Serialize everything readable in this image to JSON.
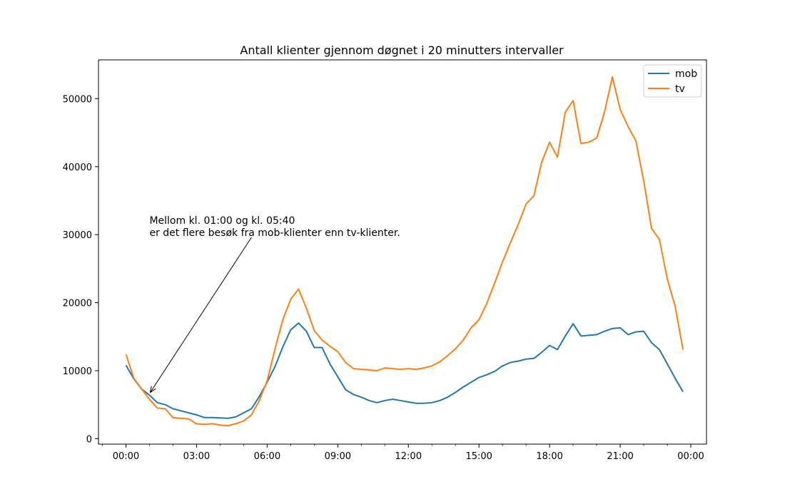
{
  "chart_data": {
    "type": "line",
    "title": "Antall klienter gjennom døgnet i 20 minutters intervaller",
    "xlabel": "",
    "ylabel": "",
    "x_unit": "minutes since midnight, 20-minute intervals",
    "x": [
      0,
      20,
      40,
      60,
      80,
      100,
      120,
      140,
      160,
      180,
      200,
      220,
      240,
      260,
      280,
      300,
      320,
      340,
      360,
      380,
      400,
      420,
      440,
      460,
      480,
      500,
      520,
      540,
      560,
      580,
      600,
      620,
      640,
      660,
      680,
      700,
      720,
      740,
      760,
      780,
      800,
      820,
      840,
      860,
      880,
      900,
      920,
      940,
      960,
      980,
      1000,
      1020,
      1040,
      1060,
      1080,
      1100,
      1120,
      1140,
      1160,
      1180,
      1200,
      1220,
      1240,
      1260,
      1280,
      1300,
      1320,
      1340,
      1360,
      1380,
      1400,
      1420
    ],
    "xlim": [
      -70,
      1480
    ],
    "ylim": [
      -800,
      55700
    ],
    "x_ticks": [
      {
        "value": 0,
        "label": "00:00"
      },
      {
        "value": 180,
        "label": "03:00"
      },
      {
        "value": 360,
        "label": "06:00"
      },
      {
        "value": 540,
        "label": "09:00"
      },
      {
        "value": 720,
        "label": "12:00"
      },
      {
        "value": 900,
        "label": "15:00"
      },
      {
        "value": 1080,
        "label": "18:00"
      },
      {
        "value": 1260,
        "label": "21:00"
      },
      {
        "value": 1440,
        "label": "00:00"
      }
    ],
    "x_minor_step": 60,
    "y_ticks": [
      {
        "value": 0,
        "label": "0"
      },
      {
        "value": 10000,
        "label": "10000"
      },
      {
        "value": 20000,
        "label": "20000"
      },
      {
        "value": 30000,
        "label": "30000"
      },
      {
        "value": 40000,
        "label": "40000"
      },
      {
        "value": 50000,
        "label": "50000"
      }
    ],
    "grid": false,
    "legend_position": "top-right",
    "series": [
      {
        "name": "mob",
        "color": "#1f77b4",
        "values": [
          10800,
          8800,
          7300,
          6400,
          5300,
          5000,
          4400,
          4100,
          3800,
          3500,
          3100,
          3100,
          3050,
          3000,
          3200,
          3800,
          4400,
          6200,
          8300,
          10600,
          13500,
          16000,
          17000,
          15800,
          13400,
          13400,
          11000,
          9100,
          7200,
          6500,
          6100,
          5600,
          5300,
          5600,
          5800,
          5600,
          5400,
          5200,
          5200,
          5300,
          5600,
          6100,
          6800,
          7600,
          8300,
          9000,
          9400,
          9900,
          10700,
          11200,
          11400,
          11700,
          11800,
          12700,
          13700,
          13100,
          15100,
          16900,
          15100,
          15200,
          15300,
          15800,
          16200,
          16300,
          15300,
          15700,
          15800,
          14100,
          13100,
          11000,
          8900,
          6900
        ]
      },
      {
        "name": "tv",
        "color": "#ff7f0e",
        "values": [
          12400,
          8900,
          7300,
          5800,
          4500,
          4400,
          3100,
          3000,
          2900,
          2200,
          2100,
          2200,
          2000,
          1900,
          2200,
          2600,
          3500,
          5600,
          8500,
          13200,
          17500,
          20500,
          22000,
          19200,
          15900,
          14500,
          13600,
          12800,
          11200,
          10300,
          10200,
          10100,
          10000,
          10400,
          10300,
          10200,
          10300,
          10200,
          10400,
          10700,
          11300,
          12200,
          13200,
          14500,
          16300,
          17500,
          19900,
          22900,
          26000,
          28800,
          31500,
          34500,
          35700,
          40700,
          43600,
          41400,
          48000,
          49700,
          43400,
          43600,
          44200,
          48000,
          53200,
          48400,
          45900,
          43800,
          37900,
          30900,
          29300,
          23500,
          19500,
          13100
        ]
      }
    ],
    "annotations": [
      {
        "lines": [
          "Mellom kl. 01:00 og kl. 05:40",
          "er det flere besøk fra mob-klienter enn tv-klienter."
        ],
        "text_anchor_x": 60,
        "text_anchor_y": 31600,
        "arrow_tail_x": 320,
        "arrow_tail_y": 29600,
        "arrow_head_x": 62,
        "arrow_head_y": 6800
      }
    ]
  }
}
